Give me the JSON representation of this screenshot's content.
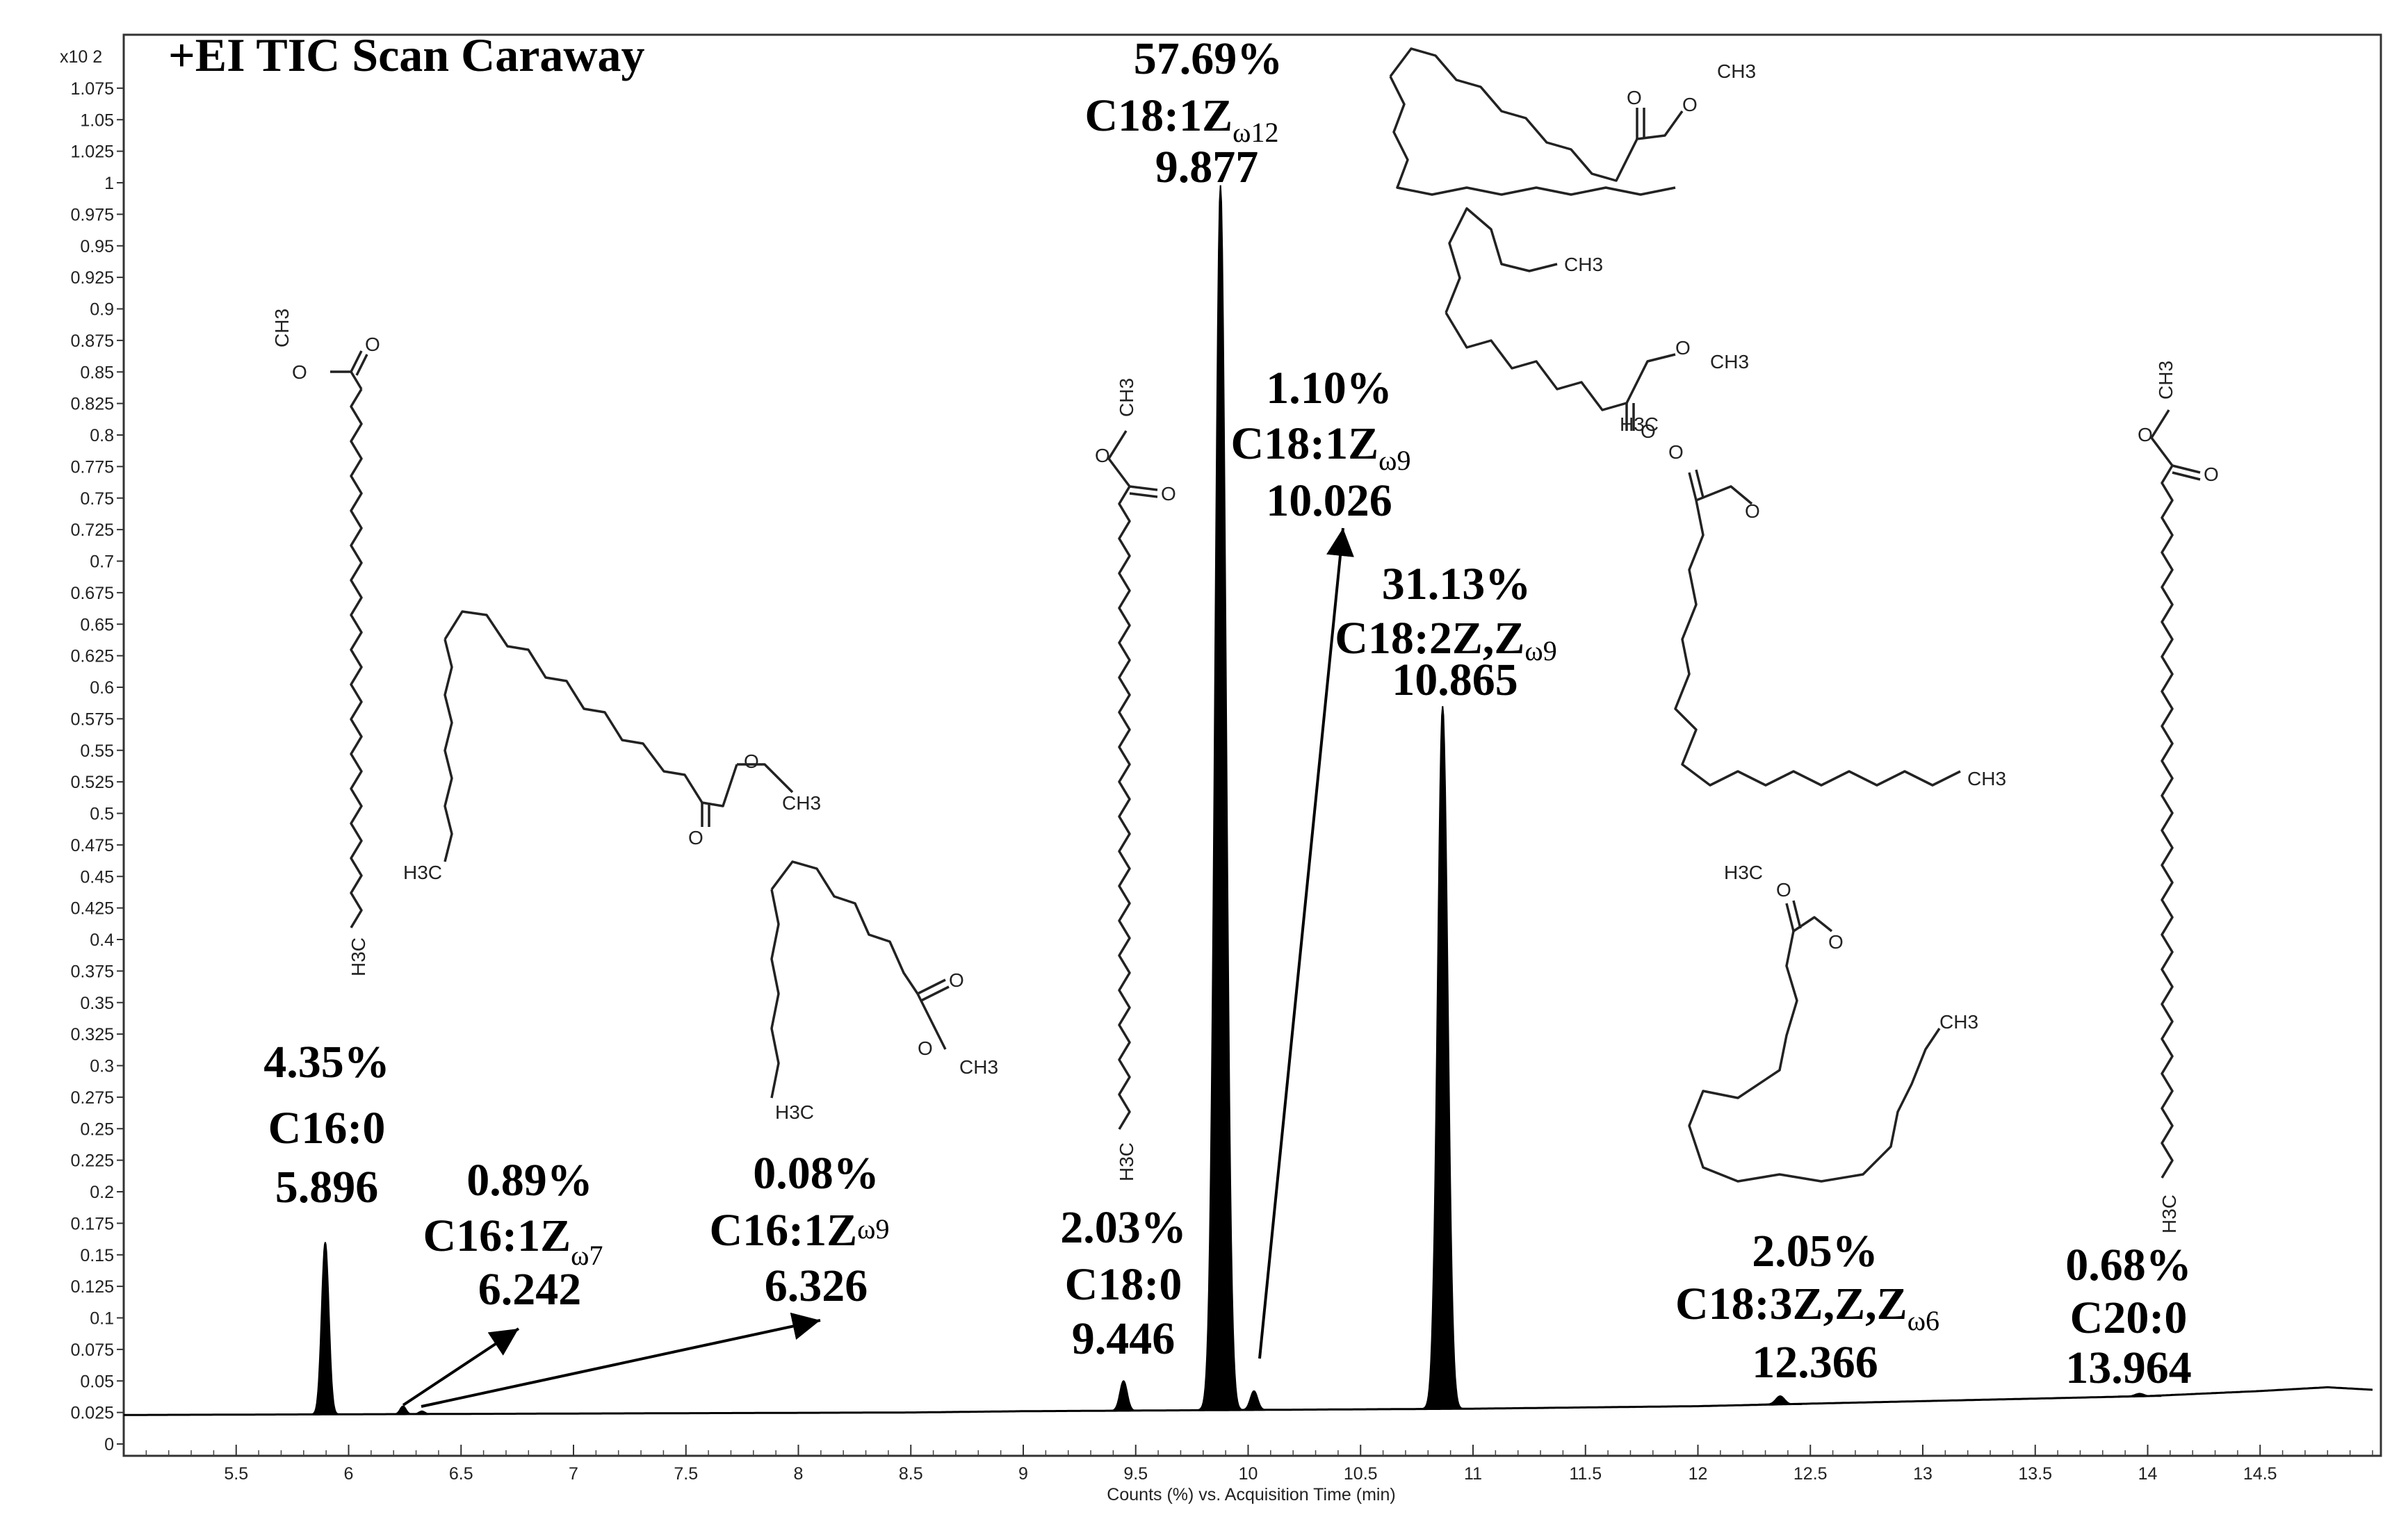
{
  "chart_data": {
    "type": "line",
    "title": "+EI TIC Scan Caraway",
    "xlabel": "Counts (%) vs. Acquisition Time (min)",
    "ylabel": "",
    "y_multiplier": "x10 2",
    "xlim": [
      5.0,
      15.0
    ],
    "ylim": [
      0,
      1.1
    ],
    "x_ticks": [
      5.5,
      6,
      6.5,
      7,
      7.5,
      8,
      8.5,
      9,
      9.5,
      10,
      10.5,
      11,
      11.5,
      12,
      12.5,
      13,
      13.5,
      14,
      14.5
    ],
    "x_tick_labels": [
      "5.5",
      "6",
      "6.5",
      "7",
      "7.5",
      "8",
      "8.5",
      "9",
      "9.5",
      "10",
      "10.5",
      "11",
      "11.5",
      "12",
      "12.5",
      "13",
      "13.5",
      "14",
      "14.5"
    ],
    "y_ticks": [
      0,
      0.025,
      0.05,
      0.075,
      0.1,
      0.125,
      0.15,
      0.175,
      0.2,
      0.225,
      0.25,
      0.275,
      0.3,
      0.325,
      0.35,
      0.375,
      0.4,
      0.425,
      0.45,
      0.475,
      0.5,
      0.525,
      0.55,
      0.575,
      0.6,
      0.625,
      0.65,
      0.675,
      0.7,
      0.725,
      0.75,
      0.775,
      0.8,
      0.825,
      0.85,
      0.875,
      0.9,
      0.925,
      0.95,
      0.975,
      1,
      1.025,
      1.05,
      1.075
    ],
    "y_tick_labels": [
      "0",
      "0.025",
      "0.05",
      "0.075",
      "0.1",
      "0.125",
      "0.15",
      "0.175",
      "0.2",
      "0.225",
      "0.25",
      "0.275",
      "0.3",
      "0.325",
      "0.35",
      "0.375",
      "0.4",
      "0.425",
      "0.45",
      "0.475",
      "0.5",
      "0.525",
      "0.55",
      "0.575",
      "0.6",
      "0.625",
      "0.65",
      "0.675",
      "0.7",
      "0.725",
      "0.75",
      "0.775",
      "0.8",
      "0.825",
      "0.85",
      "0.875",
      "0.9",
      "0.925",
      "0.95",
      "0.975",
      "1",
      "1.025",
      "1.05",
      "1.075"
    ],
    "baseline": [
      [
        5.0,
        0.023
      ],
      [
        8.5,
        0.025
      ],
      [
        9.0,
        0.026
      ],
      [
        11.0,
        0.028
      ],
      [
        12.0,
        0.03
      ],
      [
        13.0,
        0.034
      ],
      [
        14.0,
        0.038
      ],
      [
        14.5,
        0.042
      ],
      [
        14.8,
        0.045
      ],
      [
        15.0,
        0.043
      ]
    ],
    "peaks": [
      {
        "rt": 5.896,
        "height": 0.16,
        "width": 0.05
      },
      {
        "rt": 6.242,
        "height": 0.03,
        "width": 0.04
      },
      {
        "rt": 6.326,
        "height": 0.026,
        "width": 0.04
      },
      {
        "rt": 9.446,
        "height": 0.05,
        "width": 0.05
      },
      {
        "rt": 9.877,
        "height": 0.998,
        "width": 0.075
      },
      {
        "rt": 10.026,
        "height": 0.042,
        "width": 0.05
      },
      {
        "rt": 10.865,
        "height": 0.585,
        "width": 0.07
      },
      {
        "rt": 12.366,
        "height": 0.038,
        "width": 0.06
      },
      {
        "rt": 13.964,
        "height": 0.04,
        "width": 0.06
      }
    ],
    "annotations": [
      {
        "id": "c16-0",
        "percent": "4.35%",
        "name": "C16:0",
        "sub": "",
        "rt_label": "5.896"
      },
      {
        "id": "c16-1-w7",
        "percent": "0.89%",
        "name": "C16:1Z",
        "sub": "ω7",
        "rt_label": "6.242"
      },
      {
        "id": "c16-1-w9",
        "percent": "0.08%",
        "name": "C16:1Z",
        "sub": "ω9",
        "rt_label": "6.326"
      },
      {
        "id": "c18-0",
        "percent": "2.03%",
        "name": "C18:0",
        "sub": "",
        "rt_label": "9.446"
      },
      {
        "id": "c18-1-w12",
        "percent": "57.69%",
        "name": "C18:1Z",
        "sub": "ω12",
        "rt_label": "9.877"
      },
      {
        "id": "c18-1-w9",
        "percent": "1.10%",
        "name": "C18:1Z",
        "sub": "ω9",
        "rt_label": "10.026"
      },
      {
        "id": "c18-2",
        "percent": "31.13%",
        "name": "C18:2Z,Z",
        "sub": "ω9",
        "rt_label": "10.865"
      },
      {
        "id": "c18-3",
        "percent": "2.05%",
        "name": "C18:3Z,Z,Z",
        "sub": "ω6",
        "rt_label": "12.366"
      },
      {
        "id": "c20-0",
        "percent": "0.68%",
        "name": "C20:0",
        "sub": "",
        "rt_label": "13.964"
      }
    ],
    "structure_labels": {
      "ch3": "CH3",
      "h3c": "H3C",
      "o": "O"
    },
    "fill_color": "#000000",
    "grid": false,
    "legend": "none"
  }
}
